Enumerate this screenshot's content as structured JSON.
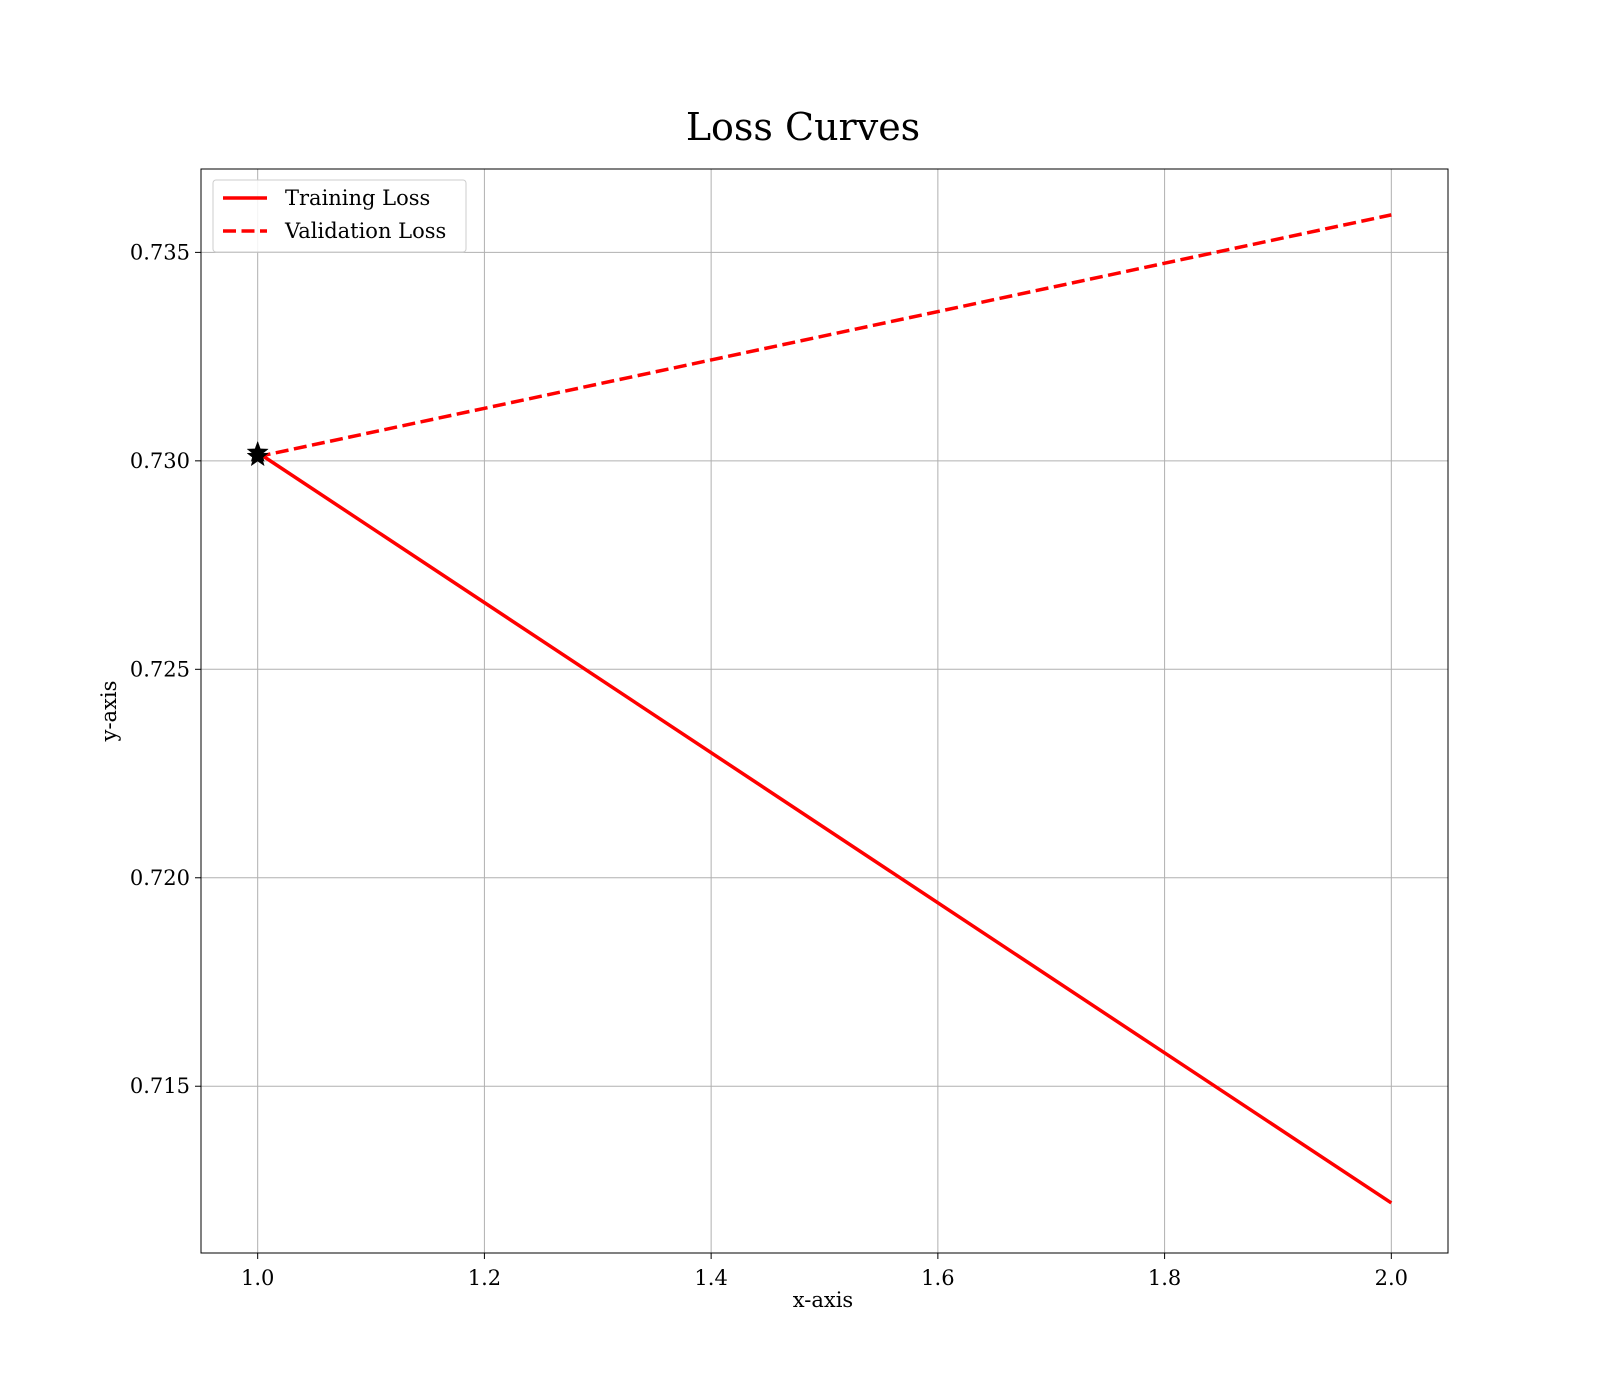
{
  "chart_data": {
    "type": "line",
    "title": "Loss Curves",
    "xlabel": "x-axis",
    "ylabel": "y-axis",
    "xlim": [
      0.95,
      2.05
    ],
    "ylim": [
      0.711,
      0.737
    ],
    "xticks": [
      1.0,
      1.2,
      1.4,
      1.6,
      1.8,
      2.0
    ],
    "xtick_labels": [
      "1.0",
      "1.2",
      "1.4",
      "1.6",
      "1.8",
      "2.0"
    ],
    "yticks": [
      0.715,
      0.72,
      0.725,
      0.73,
      0.735
    ],
    "ytick_labels": [
      "0.715",
      "0.720",
      "0.725",
      "0.730",
      "0.735"
    ],
    "grid": true,
    "legend_position": "top-left",
    "series": [
      {
        "name": "Training Loss",
        "x": [
          1.0,
          2.0
        ],
        "y": [
          0.7302,
          0.7122
        ],
        "color": "#ff0000",
        "style": "solid"
      },
      {
        "name": "Validation Loss",
        "x": [
          1.0,
          2.0
        ],
        "y": [
          0.7301,
          0.7359
        ],
        "color": "#ff0000",
        "style": "dashed"
      }
    ],
    "markers": [
      {
        "x": 1.0,
        "y": 0.7302,
        "symbol": "star",
        "color": "#000000"
      },
      {
        "x": 1.0,
        "y": 0.7301,
        "symbol": "star",
        "color": "#000000"
      }
    ]
  }
}
